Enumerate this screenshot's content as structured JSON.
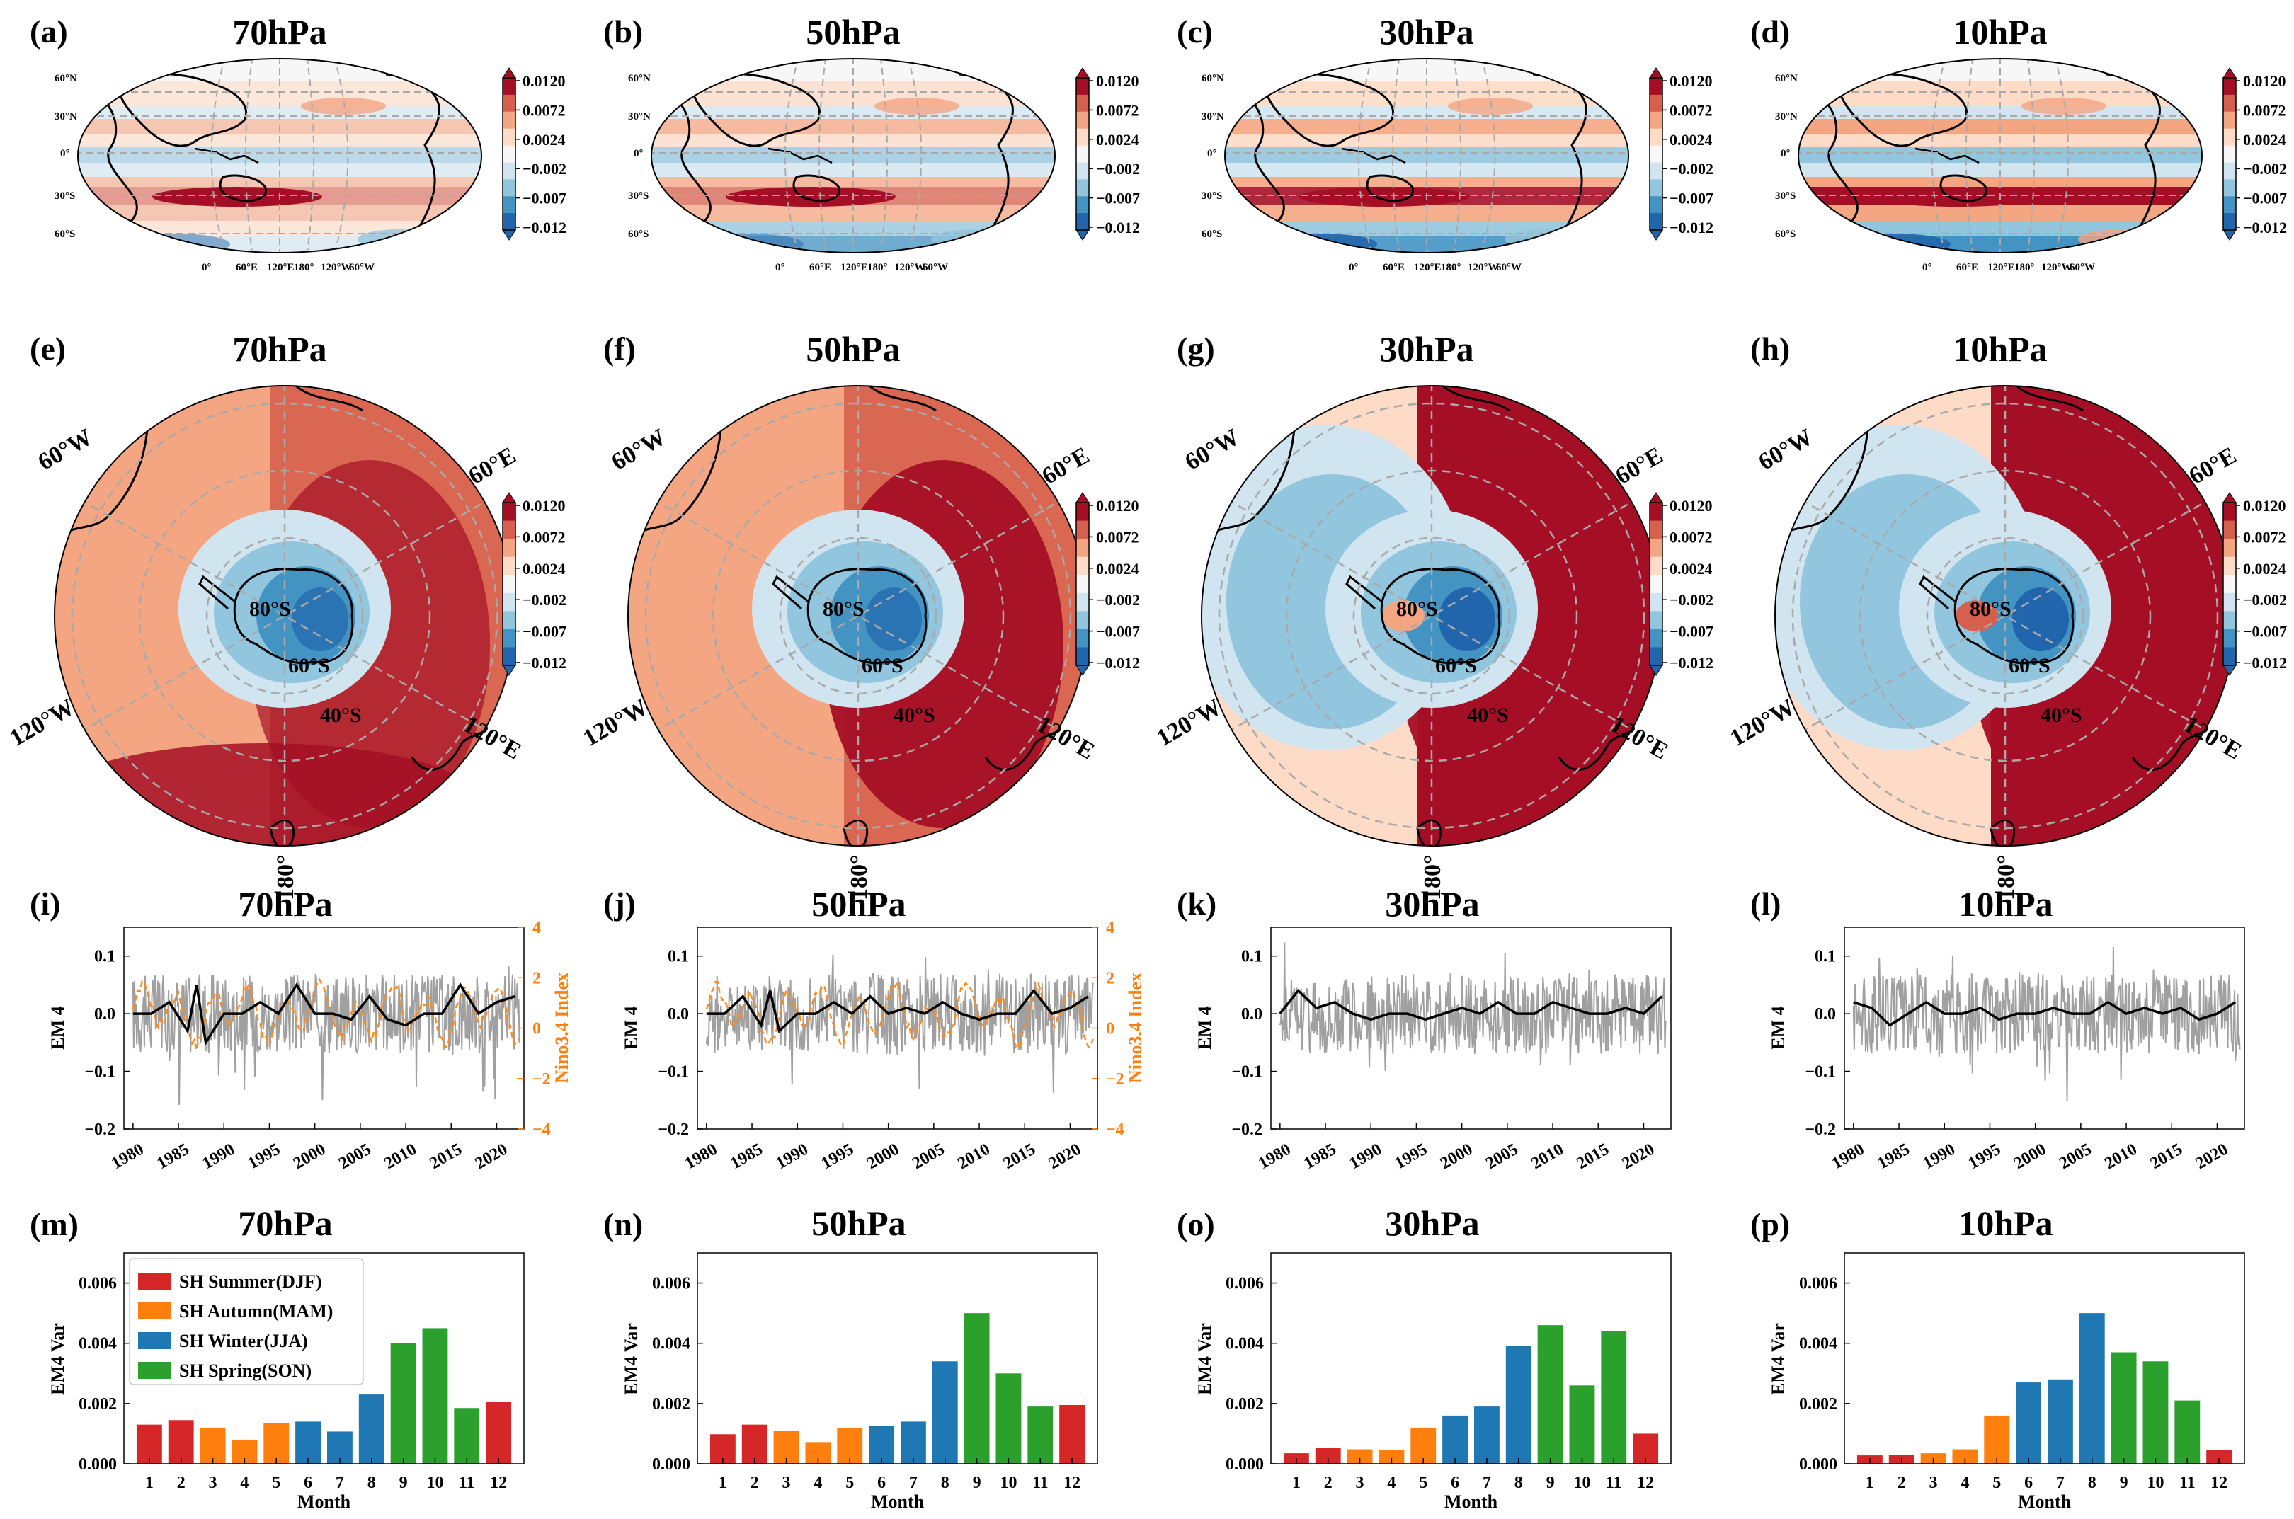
{
  "figure": {
    "colorbar_ticks": [
      "0.0120",
      "0.0072",
      "0.0024",
      "−0.002",
      "−0.007",
      "−0.012"
    ],
    "palette": {
      "dark_red": "#a50f25",
      "red": "#d6604d",
      "light_red": "#f4a582",
      "pale_red": "#fddbc7",
      "white": "#f7f7f7",
      "pale_blue": "#d1e5f0",
      "light_blue": "#92c5de",
      "blue": "#4393c3",
      "dark_blue": "#2166ac",
      "land": "#000000",
      "grid": "#a9a9a9"
    },
    "season_colors": {
      "summer": "#d62728",
      "autumn": "#ff7f0e",
      "winter": "#1f77b4",
      "spring": "#2ca02c"
    },
    "global_maps": {
      "panels": [
        {
          "label": "(a)",
          "title": "70hPa"
        },
        {
          "label": "(b)",
          "title": "50hPa"
        },
        {
          "label": "(c)",
          "title": "30hPa"
        },
        {
          "label": "(d)",
          "title": "10hPa"
        }
      ],
      "lat_labels": [
        "60°N",
        "30°N",
        "0°",
        "30°S",
        "60°S"
      ],
      "lon_labels": [
        "0°",
        "60°E",
        "120°E",
        "180°",
        "120°W",
        "60°W"
      ]
    },
    "polar_maps": {
      "panels": [
        {
          "label": "(e)",
          "title": "70hPa"
        },
        {
          "label": "(f)",
          "title": "50hPa"
        },
        {
          "label": "(g)",
          "title": "30hPa"
        },
        {
          "label": "(h)",
          "title": "10hPa"
        }
      ],
      "lon_labels": {
        "nw": "60°W",
        "ne": "60°E",
        "sw": "120°W",
        "se": "120°E",
        "bottom": "180°"
      },
      "lat_labels": [
        "80°S",
        "60°S",
        "40°S"
      ]
    },
    "timeseries": {
      "panels": [
        {
          "label": "(i)",
          "title": "70hPa",
          "nino": true
        },
        {
          "label": "(j)",
          "title": "50hPa",
          "nino": true
        },
        {
          "label": "(k)",
          "title": "30hPa",
          "nino": false
        },
        {
          "label": "(l)",
          "title": "10hPa",
          "nino": false
        }
      ],
      "ylabel": "EM 4",
      "ylabel_right": "Nino3.4 Index",
      "yticks": [
        "0.1",
        "0.0",
        "−0.1",
        "−0.2"
      ],
      "yticks_right": [
        "4",
        "2",
        "0",
        "−2",
        "−4"
      ],
      "xticks": [
        "1980",
        "1985",
        "1990",
        "1995",
        "2000",
        "2005",
        "2010",
        "2015",
        "2020"
      ]
    },
    "bars": {
      "panels": [
        {
          "label": "(m)",
          "title": "70hPa"
        },
        {
          "label": "(n)",
          "title": "50hPa"
        },
        {
          "label": "(o)",
          "title": "30hPa"
        },
        {
          "label": "(p)",
          "title": "10hPa"
        }
      ],
      "ylabel": "EM4 Var",
      "xlabel": "Month",
      "yticks": [
        "0.006",
        "0.004",
        "0.002",
        "0.000"
      ],
      "legend": [
        "SH Summer(DJF)",
        "SH Autumn(MAM)",
        "SH Winter(JJA)",
        "SH Spring(SON)"
      ]
    }
  },
  "chart_data": [
    {
      "type": "bar",
      "title": "70hPa",
      "xlabel": "Month",
      "ylabel": "EM4 Var",
      "ylim": [
        0,
        0.007
      ],
      "categories": [
        "1",
        "2",
        "3",
        "4",
        "5",
        "6",
        "7",
        "8",
        "9",
        "10",
        "11",
        "12"
      ],
      "values": [
        0.0013,
        0.00145,
        0.0012,
        0.0008,
        0.00135,
        0.0014,
        0.00107,
        0.0023,
        0.004,
        0.0045,
        0.00185,
        0.00205
      ],
      "season_of_month": [
        "summer",
        "summer",
        "autumn",
        "autumn",
        "autumn",
        "winter",
        "winter",
        "winter",
        "spring",
        "spring",
        "spring",
        "summer"
      ]
    },
    {
      "type": "bar",
      "title": "50hPa",
      "xlabel": "Month",
      "ylabel": "EM4 Var",
      "ylim": [
        0,
        0.007
      ],
      "categories": [
        "1",
        "2",
        "3",
        "4",
        "5",
        "6",
        "7",
        "8",
        "9",
        "10",
        "11",
        "12"
      ],
      "values": [
        0.00098,
        0.0013,
        0.0011,
        0.00072,
        0.0012,
        0.00125,
        0.0014,
        0.0034,
        0.005,
        0.003,
        0.0019,
        0.00195
      ],
      "season_of_month": [
        "summer",
        "summer",
        "autumn",
        "autumn",
        "autumn",
        "winter",
        "winter",
        "winter",
        "spring",
        "spring",
        "spring",
        "summer"
      ]
    },
    {
      "type": "bar",
      "title": "30hPa",
      "xlabel": "Month",
      "ylabel": "EM4 Var",
      "ylim": [
        0,
        0.007
      ],
      "categories": [
        "1",
        "2",
        "3",
        "4",
        "5",
        "6",
        "7",
        "8",
        "9",
        "10",
        "11",
        "12"
      ],
      "values": [
        0.00035,
        0.00052,
        0.00048,
        0.00045,
        0.0012,
        0.0016,
        0.0019,
        0.0039,
        0.0046,
        0.0026,
        0.0044,
        0.001
      ],
      "season_of_month": [
        "summer",
        "summer",
        "autumn",
        "autumn",
        "autumn",
        "winter",
        "winter",
        "winter",
        "spring",
        "spring",
        "spring",
        "summer"
      ]
    },
    {
      "type": "bar",
      "title": "10hPa",
      "xlabel": "Month",
      "ylabel": "EM4 Var",
      "ylim": [
        0,
        0.007
      ],
      "categories": [
        "1",
        "2",
        "3",
        "4",
        "5",
        "6",
        "7",
        "8",
        "9",
        "10",
        "11",
        "12"
      ],
      "values": [
        0.00028,
        0.0003,
        0.00035,
        0.00048,
        0.0016,
        0.0027,
        0.0028,
        0.005,
        0.0037,
        0.0034,
        0.0021,
        0.00045
      ],
      "season_of_month": [
        "summer",
        "summer",
        "autumn",
        "autumn",
        "autumn",
        "winter",
        "winter",
        "winter",
        "spring",
        "spring",
        "spring",
        "summer"
      ]
    },
    {
      "type": "line",
      "title": "70hPa",
      "ylabel": "EM 4",
      "ylim": [
        -0.2,
        0.15
      ],
      "xlim": [
        1979,
        2023
      ],
      "series": [
        {
          "x": [
            1980,
            1982,
            1984,
            1986,
            1987,
            1988,
            1990,
            1992,
            1994,
            1996,
            1998,
            2000,
            2002,
            2004,
            2006,
            2008,
            2010,
            2012,
            2014,
            2016,
            2018,
            2020,
            2022
          ],
          "values": [
            0.0,
            0.0,
            0.02,
            -0.03,
            0.05,
            -0.05,
            0.0,
            0.0,
            0.02,
            0.0,
            0.05,
            0.0,
            0.0,
            -0.01,
            0.03,
            -0.01,
            -0.02,
            0.0,
            0.0,
            0.05,
            0.0,
            0.02,
            0.03
          ]
        }
      ]
    },
    {
      "type": "line",
      "title": "50hPa",
      "ylabel": "EM 4",
      "ylim": [
        -0.2,
        0.15
      ],
      "xlim": [
        1979,
        2023
      ],
      "series": [
        {
          "x": [
            1980,
            1982,
            1984,
            1986,
            1987,
            1988,
            1990,
            1992,
            1994,
            1996,
            1998,
            2000,
            2002,
            2004,
            2006,
            2008,
            2010,
            2012,
            2014,
            2016,
            2018,
            2020,
            2022
          ],
          "values": [
            0.0,
            0.0,
            0.03,
            -0.02,
            0.04,
            -0.03,
            0.0,
            0.0,
            0.02,
            0.0,
            0.03,
            0.0,
            0.01,
            0.0,
            0.02,
            0.0,
            -0.01,
            0.0,
            0.0,
            0.04,
            0.0,
            0.01,
            0.03
          ]
        }
      ]
    },
    {
      "type": "line",
      "title": "30hPa",
      "ylabel": "EM 4",
      "ylim": [
        -0.2,
        0.15
      ],
      "xlim": [
        1979,
        2023
      ],
      "series": [
        {
          "x": [
            1980,
            1982,
            1984,
            1986,
            1988,
            1990,
            1992,
            1994,
            1996,
            1998,
            2000,
            2002,
            2004,
            2006,
            2008,
            2010,
            2012,
            2014,
            2016,
            2018,
            2020,
            2022
          ],
          "values": [
            0.0,
            0.04,
            0.01,
            0.02,
            0.0,
            -0.01,
            0.0,
            0.0,
            -0.01,
            0.0,
            0.01,
            0.0,
            0.02,
            0.0,
            0.0,
            0.02,
            0.01,
            0.0,
            0.0,
            0.01,
            0.0,
            0.03
          ]
        }
      ]
    },
    {
      "type": "line",
      "title": "10hPa",
      "ylabel": "EM 4",
      "ylim": [
        -0.2,
        0.15
      ],
      "xlim": [
        1979,
        2023
      ],
      "series": [
        {
          "x": [
            1980,
            1982,
            1984,
            1986,
            1988,
            1990,
            1992,
            1994,
            1996,
            1998,
            2000,
            2002,
            2004,
            2006,
            2008,
            2010,
            2012,
            2014,
            2016,
            2018,
            2020,
            2022
          ],
          "values": [
            0.02,
            0.01,
            -0.02,
            0.0,
            0.02,
            0.0,
            0.0,
            0.01,
            -0.01,
            0.0,
            0.0,
            0.01,
            0.0,
            0.0,
            0.02,
            0.0,
            0.01,
            0.0,
            0.01,
            -0.01,
            0.0,
            0.02
          ]
        }
      ]
    }
  ]
}
